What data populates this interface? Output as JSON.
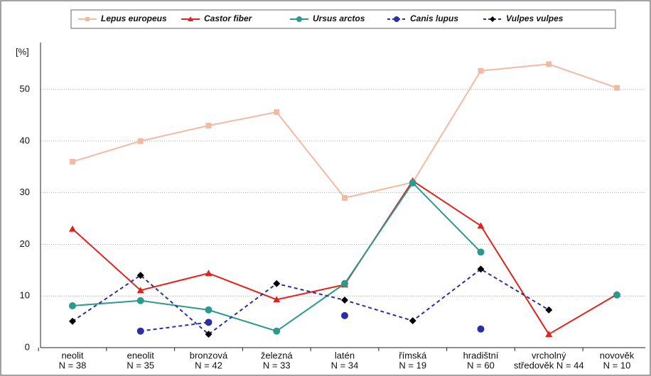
{
  "chart_data": {
    "type": "line",
    "y_label": "[%]",
    "categories": [
      [
        "neolit",
        "N = 38"
      ],
      [
        "eneolit",
        "N = 35"
      ],
      [
        "bronzová",
        "N = 42"
      ],
      [
        "železná",
        "N = 33"
      ],
      [
        "latén",
        "N = 34"
      ],
      [
        "římská",
        "N = 19"
      ],
      [
        "hradištní",
        "N = 60"
      ],
      [
        "vrcholný",
        "středověk N = 44"
      ],
      [
        "novověk",
        "N = 10"
      ]
    ],
    "series": [
      {
        "name": "Lepus europeus",
        "color": "#f4b9a2",
        "marker": "square",
        "dashed": false,
        "values": [
          36,
          40,
          43,
          45.6,
          29,
          32,
          53.6,
          54.9,
          50.3
        ]
      },
      {
        "name": "Castor fiber",
        "color": "#e0231c",
        "marker": "triangle",
        "dashed": false,
        "values": [
          23,
          11.1,
          14.4,
          9.3,
          12.2,
          32.3,
          23.6,
          2.6,
          10.3
        ]
      },
      {
        "name": "Ursus arctos",
        "color": "#2a9a8c",
        "marker": "circle",
        "dashed": false,
        "values": [
          8.1,
          9.1,
          7.3,
          3.2,
          12.4,
          31.9,
          18.5,
          null,
          10.2
        ]
      },
      {
        "name": "Canis lupus",
        "color": "#2b2fa6",
        "marker": "circle",
        "dashed": true,
        "values": [
          null,
          3.2,
          4.9,
          null,
          6.2,
          null,
          3.6,
          null,
          null
        ]
      },
      {
        "name": "Vulpes vulpes",
        "color": "#2b2fa6",
        "marker_color": "#000000",
        "marker": "diamond",
        "dashed": true,
        "values": [
          5.1,
          14,
          2.6,
          12.4,
          9.2,
          5.2,
          15.2,
          7.3,
          null
        ]
      }
    ],
    "ylim": [
      0,
      57.7
    ],
    "yticks": [
      0,
      10,
      20,
      30,
      40,
      50
    ],
    "grid": true
  }
}
